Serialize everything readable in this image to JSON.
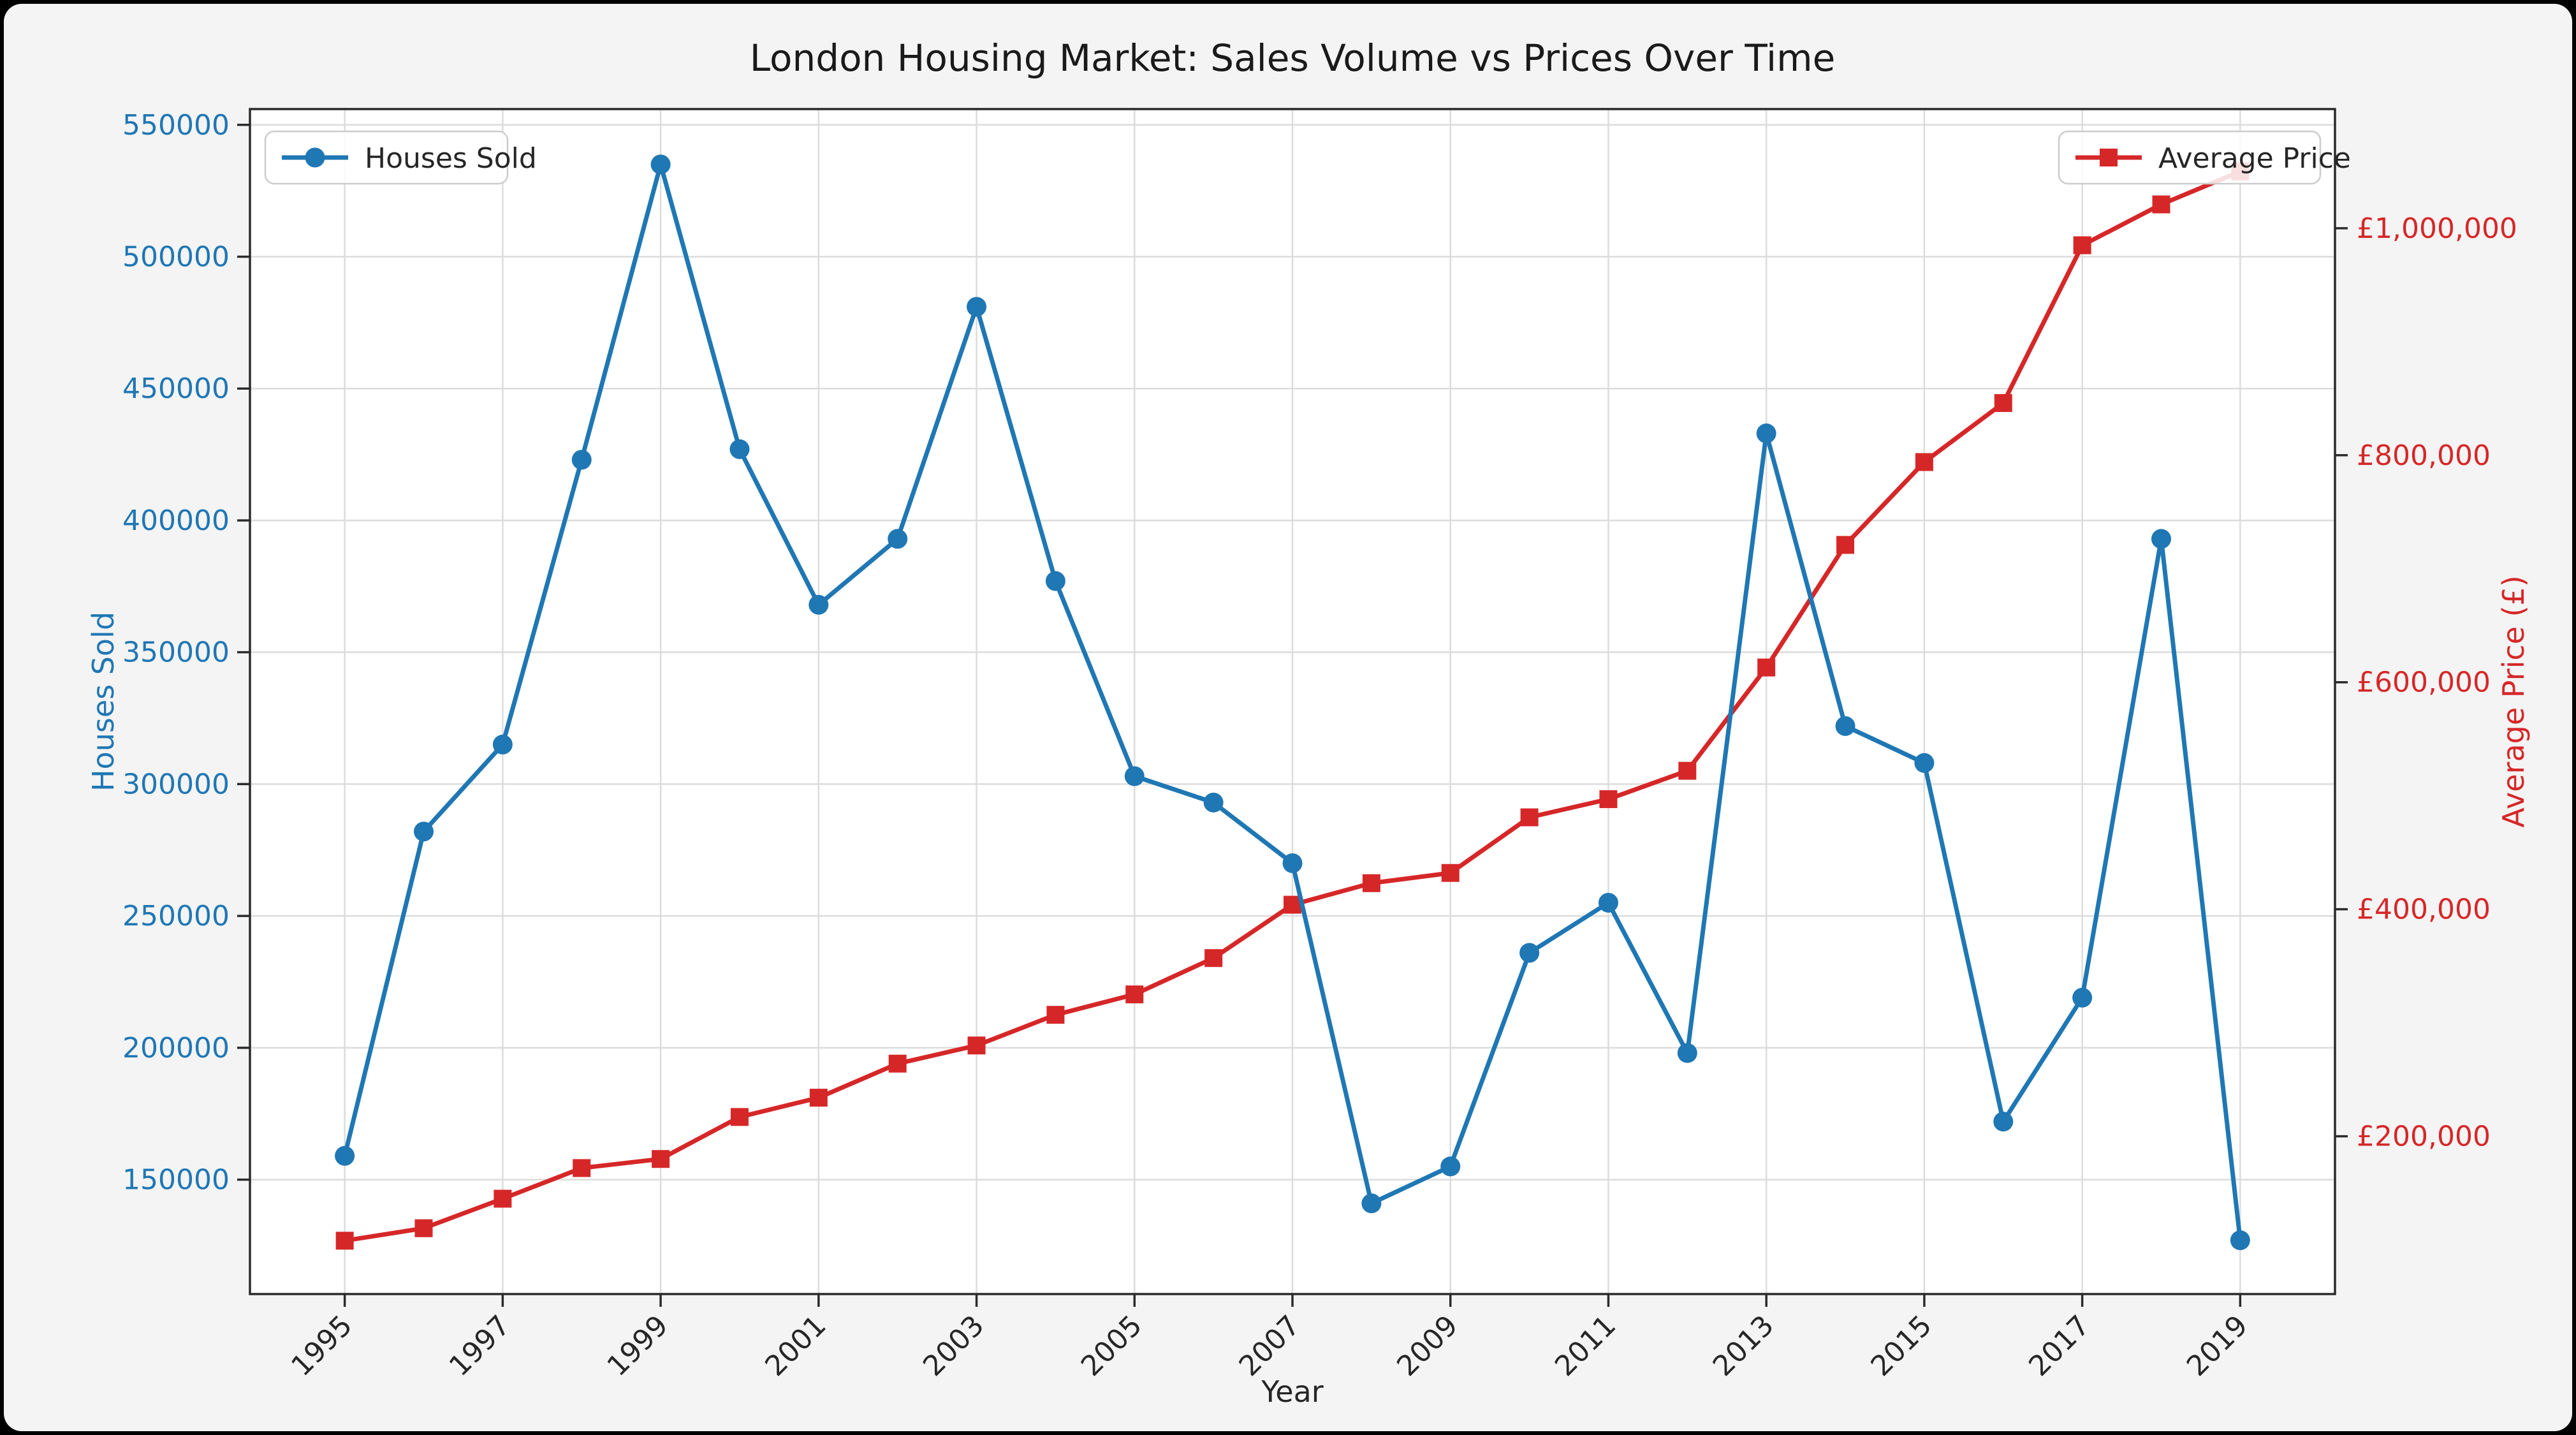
{
  "window": {
    "background": "#f4f4f4",
    "plot_background": "#ffffff",
    "frame_color": "#000000"
  },
  "chart_data": {
    "type": "line",
    "title": "London Housing Market: Sales Volume vs Prices Over Time",
    "xlabel": "Year",
    "grid": true,
    "x": [
      1995,
      1996,
      1997,
      1998,
      1999,
      2000,
      2001,
      2002,
      2003,
      2004,
      2005,
      2006,
      2007,
      2008,
      2009,
      2010,
      2011,
      2012,
      2013,
      2014,
      2015,
      2016,
      2017,
      2018,
      2019
    ],
    "x_tick_labels": [
      "1995",
      "1997",
      "1999",
      "2001",
      "2003",
      "2005",
      "2007",
      "2009",
      "2011",
      "2013",
      "2015",
      "2017",
      "2019"
    ],
    "x_ticks": [
      1995,
      1997,
      1999,
      2001,
      2003,
      2005,
      2007,
      2009,
      2011,
      2013,
      2015,
      2017,
      2019
    ],
    "xlim": [
      1993.8,
      2020.2
    ],
    "series": [
      {
        "name": "Houses Sold",
        "axis": "left",
        "color": "#1f77b4",
        "marker": "circle",
        "values": [
          159000,
          282000,
          315000,
          423000,
          535000,
          427000,
          368000,
          393000,
          481000,
          377000,
          303000,
          293000,
          270000,
          141000,
          155000,
          236000,
          255000,
          198000,
          433000,
          322000,
          308000,
          172000,
          219000,
          393000,
          127000
        ]
      },
      {
        "name": "Average Price",
        "axis": "right",
        "color": "#d62728",
        "marker": "square",
        "values": [
          108000,
          119000,
          145000,
          172000,
          180000,
          217000,
          234000,
          264000,
          280000,
          307000,
          325000,
          357000,
          404000,
          423000,
          432000,
          481000,
          497000,
          522000,
          613000,
          721000,
          794000,
          846000,
          985000,
          1021000,
          1050000
        ]
      }
    ],
    "left_axis": {
      "label": "Houses Sold",
      "color": "#1f77b4",
      "ticks": [
        150000,
        200000,
        250000,
        300000,
        350000,
        400000,
        450000,
        500000,
        550000
      ],
      "lim": [
        106600,
        556000
      ],
      "tick_prefix": ""
    },
    "right_axis": {
      "label": "Average Price (£)",
      "color": "#d62728",
      "ticks": [
        200000,
        400000,
        600000,
        800000,
        1000000
      ],
      "lim": [
        61000,
        1105000
      ],
      "tick_prefix": "£",
      "thousands_separator": ","
    },
    "legend": [
      {
        "label": "Houses Sold",
        "position": "upper-left"
      },
      {
        "label": "Average Price",
        "position": "upper-right"
      }
    ],
    "text_color": "#1a1a1a",
    "grid_color": "#dcdcdc",
    "spine_color": "#2b2b2b"
  }
}
